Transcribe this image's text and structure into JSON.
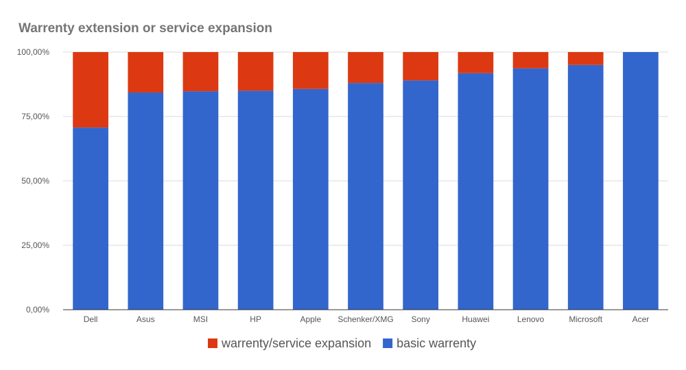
{
  "chart_data": {
    "type": "bar",
    "stacked": true,
    "title": "Warrenty extension or service expansion",
    "xlabel": "",
    "ylabel": "",
    "categories": [
      "Dell",
      "Asus",
      "MSI",
      "HP",
      "Apple",
      "Schenker/XMG",
      "Sony",
      "Huawei",
      "Lenovo",
      "Microsoft",
      "Acer"
    ],
    "series": [
      {
        "name": "basic warrenty",
        "color": "#3366cc",
        "values": [
          70.7,
          84.3,
          84.8,
          85.0,
          85.7,
          88.0,
          89.0,
          91.8,
          93.7,
          95.0,
          100.0
        ]
      },
      {
        "name": "warrenty/service expansion",
        "color": "#dc3912",
        "values": [
          29.3,
          15.7,
          15.2,
          15.0,
          14.3,
          12.0,
          11.0,
          8.2,
          6.3,
          5.0,
          0.0
        ]
      }
    ],
    "ylim": [
      0,
      100
    ],
    "yticks": [
      "0,00%",
      "25,00%",
      "50,00%",
      "75,00%",
      "100,00%"
    ],
    "legend_order": [
      "warrenty/service expansion",
      "basic warrenty"
    ],
    "legend_position": "bottom",
    "grid": true
  }
}
